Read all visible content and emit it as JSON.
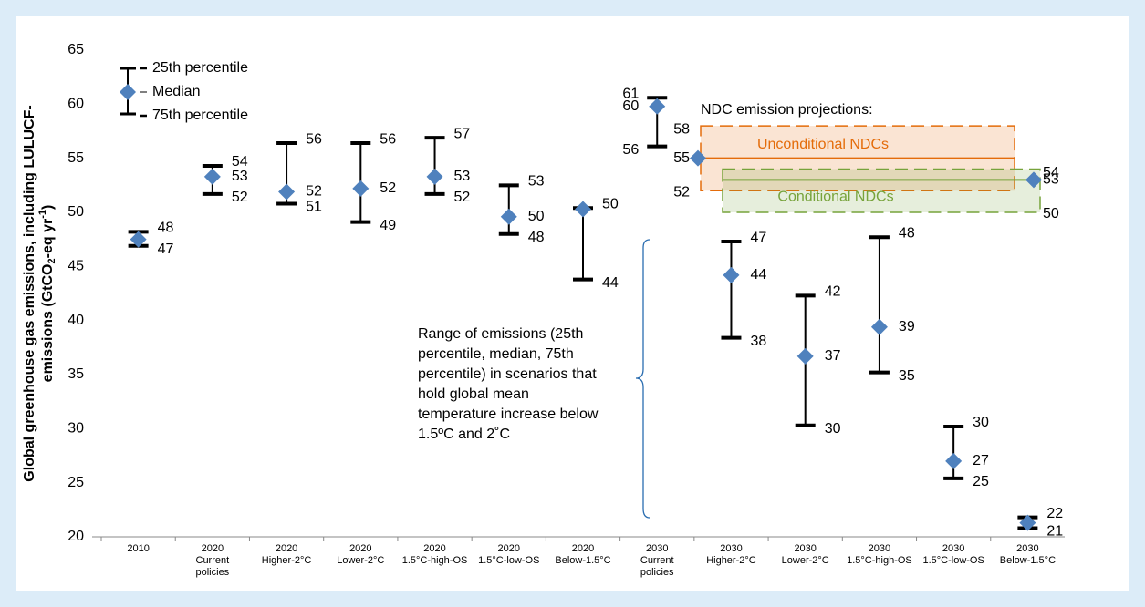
{
  "chart_data": {
    "type": "errorbar",
    "ylabel": [
      "Global greenhouse gas emissions, including LULUCF-",
      "emissions (GtCO",
      "2",
      "-eq yr",
      "-1",
      ")"
    ],
    "ylim": [
      20,
      65
    ],
    "yticks": [
      20,
      25,
      30,
      35,
      40,
      45,
      50,
      55,
      60,
      65
    ],
    "categories": [
      [
        "2010"
      ],
      [
        "2020",
        "Current",
        "policies"
      ],
      [
        "2020",
        "Higher-2°C"
      ],
      [
        "2020",
        "Lower-2°C"
      ],
      [
        "2020",
        "1.5°C-high-OS"
      ],
      [
        "2020",
        "1.5°C-low-OS"
      ],
      [
        "2020",
        "Below-1.5°C"
      ],
      [
        "2030",
        "Current",
        "policies"
      ],
      [
        "2030",
        "Higher-2°C"
      ],
      [
        "2030",
        "Lower-2°C"
      ],
      [
        "2030",
        "1.5°C-high-OS"
      ],
      [
        "2030",
        "1.5°C-low-OS"
      ],
      [
        "2030",
        "Below-1.5°C"
      ]
    ],
    "series": [
      {
        "name": "25th percentile",
        "color": "#000000",
        "values": [
          48.2,
          54.3,
          56.4,
          56.4,
          56.9,
          52.5,
          50.4,
          60.6,
          47.3,
          42.3,
          47.7,
          30.2,
          21.8
        ],
        "value_labels": [
          "48",
          "54",
          "56",
          "56",
          "57",
          "53",
          "50",
          "61",
          "47",
          "42",
          "48",
          "30",
          "22"
        ]
      },
      {
        "name": "Median",
        "color": "#4f81bd",
        "values": [
          47.5,
          53.3,
          51.9,
          52.2,
          53.3,
          49.6,
          50.3,
          59.8,
          44.2,
          36.7,
          39.4,
          27,
          21.3
        ],
        "value_labels": [
          null,
          "53",
          "52",
          "52",
          "53",
          "50",
          null,
          "60",
          "44",
          "37",
          "39",
          "27",
          null
        ]
      },
      {
        "name": "75th percentile",
        "color": "#000000",
        "values": [
          46.9,
          51.7,
          50.8,
          49.1,
          51.7,
          48,
          43.8,
          56.1,
          38.4,
          30.3,
          35.2,
          25.4,
          20.8
        ],
        "value_labels": [
          "47",
          "52",
          "51",
          "49",
          "52",
          "48",
          "44",
          "56",
          "38",
          "30",
          "35",
          "25",
          "21"
        ]
      }
    ],
    "ndc": {
      "title": "NDC emission projections:",
      "groups": [
        {
          "name": "Unconditional NDCs",
          "color": "#e46c0a",
          "values": [
            58,
            55,
            52
          ]
        },
        {
          "name": "Conditional NDCs",
          "color": "#77a33b",
          "values": [
            54,
            53,
            50
          ]
        }
      ]
    },
    "annotation": [
      "Range of emissions (25th",
      "percentile, median, 75th",
      "percentile) in scenarios that",
      "hold global mean",
      "temperature increase below",
      "1.5ºC and 2˚C"
    ]
  }
}
